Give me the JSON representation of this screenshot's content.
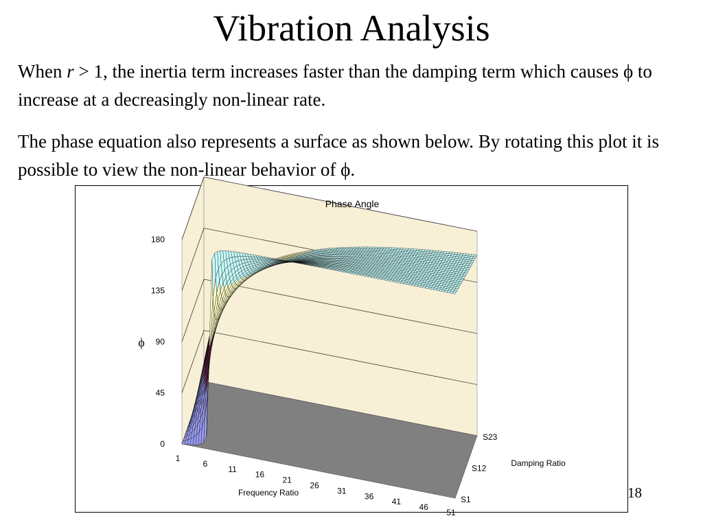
{
  "slide": {
    "title": "Vibration Analysis",
    "para1": {
      "a": "When ",
      "var": "r",
      "b": " > 1, the inertia term increases faster than the damping term which causes ",
      "phi": "ϕ",
      "c": " to increase at a decreasingly non-linear rate."
    },
    "para2": {
      "a": "The phase equation also represents a surface as shown below.  By rotating this plot it is possible to view the non-linear behavior of ",
      "phi": "ϕ",
      "c": "."
    },
    "slide_number": "18"
  },
  "chart_data": {
    "type": "surface",
    "title": "Phase Angle",
    "zlabel": "ϕ",
    "xlabel": "Frequency Ratio",
    "ylabel": "Damping Ratio",
    "z_ticks": [
      "0",
      "45",
      "90",
      "135",
      "180"
    ],
    "x_ticks": [
      "1",
      "6",
      "11",
      "16",
      "21",
      "26",
      "31",
      "36",
      "41",
      "46",
      "51"
    ],
    "y_ticks": [
      "S1",
      "S12",
      "S23"
    ],
    "zlim": [
      0,
      180
    ],
    "bands": [
      {
        "range": [
          0,
          45
        ],
        "color": "#9a9cf0"
      },
      {
        "range": [
          45,
          90
        ],
        "color": "#8a2f5c"
      },
      {
        "range": [
          90,
          135
        ],
        "color": "#fbfbc4"
      },
      {
        "range": [
          135,
          180
        ],
        "color": "#c6fbfb"
      }
    ],
    "floor_color": "#808080",
    "wall_color": "#f7efd6"
  }
}
